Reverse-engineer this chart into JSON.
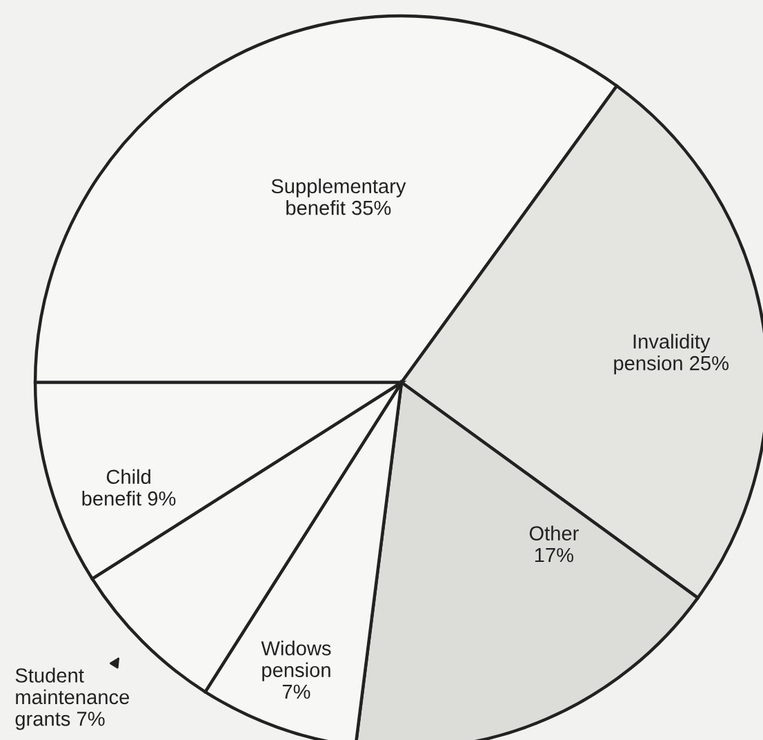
{
  "chart_data": {
    "type": "pie",
    "categories": [
      "Supplementary benefit",
      "Invalidity pension",
      "Other",
      "Widows pension",
      "Student maintenance grants",
      "Child benefit"
    ],
    "values": [
      35,
      25,
      17,
      7,
      7,
      9
    ],
    "value_labels": [
      "35%",
      "25%",
      "17%",
      "7%",
      "7%",
      "9%"
    ],
    "colors": [
      "#f7f7f5",
      "#e4e4e1",
      "#dcdcd9",
      "#f7f7f5",
      "#f7f7f5",
      "#f7f7f5"
    ]
  }
}
